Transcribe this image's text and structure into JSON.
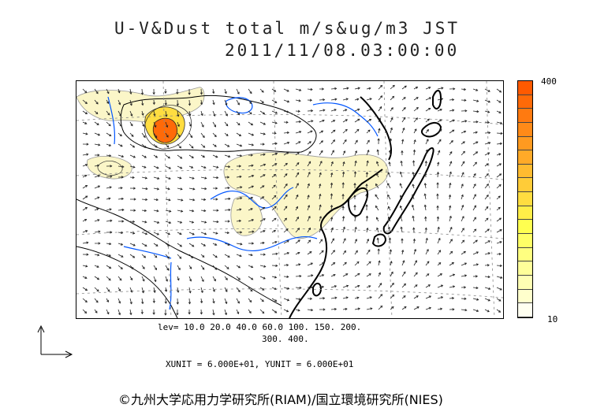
{
  "title": {
    "line1": "U-V&Dust total m/s&ug/m3 JST",
    "line2": "2011/11/08.03:00:00"
  },
  "colorbar": {
    "max_label": "400",
    "min_label": "10",
    "colors": [
      "#ff5a00",
      "#ff6a08",
      "#ff7a10",
      "#ff8a18",
      "#ff9a20",
      "#ffaa28",
      "#ffbb30",
      "#ffcc38",
      "#ffdd40",
      "#ffee48",
      "#ffff50",
      "#ffff66",
      "#ffff80",
      "#ffff9a",
      "#ffffb4",
      "#ffffcc",
      "#fffff0"
    ]
  },
  "levels": {
    "line1": "lev= 10.0 20.0 40.0 60.0 100. 150. 200.",
    "line2": "300. 400."
  },
  "units_text": "XUNIT = 6.000E+01, YUNIT = 6.000E+01",
  "copyright": "©九州大学応用力学研究所(RIAM)/国立環境研究所(NIES)",
  "map_colors": {
    "coast": "#000000",
    "rivers": "#0055ff",
    "dust_low": "#fbf6c8",
    "dust_mid": "#ffcc38",
    "dust_high": "#ff6a08",
    "arrows": "#222222",
    "grid": "#888888"
  }
}
